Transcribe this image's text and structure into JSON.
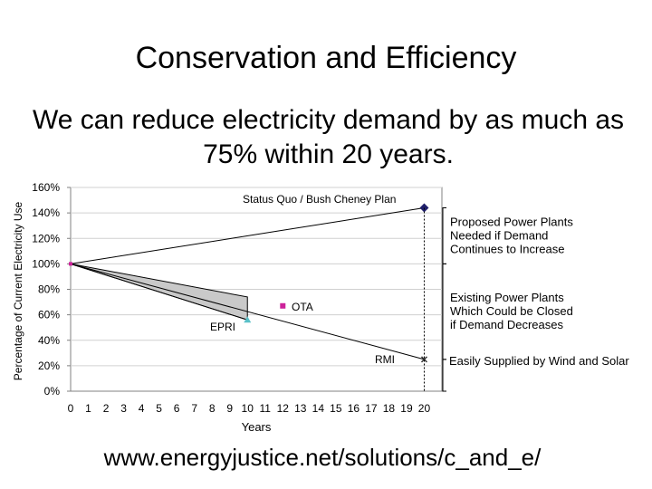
{
  "slide": {
    "title": "Conservation and Efficiency",
    "subtitle": "We can reduce electricity demand by as much as 75% within 20 years.",
    "url": "www.energyjustice.net/solutions/c_and_e/"
  },
  "chart_data": {
    "type": "line",
    "title": "",
    "xlabel": "Years",
    "ylabel": "Percentage of Current Electricity Use",
    "xlim": [
      0,
      21
    ],
    "ylim": [
      0,
      160
    ],
    "x_ticks": [
      "0",
      "1",
      "2",
      "3",
      "4",
      "5",
      "6",
      "7",
      "8",
      "9",
      "10",
      "11",
      "12",
      "13",
      "14",
      "15",
      "16",
      "17",
      "18",
      "19",
      "20"
    ],
    "y_ticks": [
      "0%",
      "20%",
      "40%",
      "60%",
      "80%",
      "100%",
      "120%",
      "140%",
      "160%"
    ],
    "y_tick_values": [
      0,
      20,
      40,
      60,
      80,
      100,
      120,
      140,
      160
    ],
    "series": [
      {
        "name": "Status Quo / Bush Cheney Plan",
        "x": [
          0,
          20
        ],
        "y": [
          100,
          144
        ],
        "color": "#1f1f6b",
        "marker": "diamond"
      },
      {
        "name": "OTA",
        "x": [
          0,
          12
        ],
        "y": [
          100,
          67
        ],
        "color": "#cc2299",
        "marker": "square"
      },
      {
        "name": "EPRI",
        "x": [
          0,
          10
        ],
        "y": [
          100,
          56
        ],
        "color": "#59c0c8",
        "marker": "triangle"
      },
      {
        "name": "RMI",
        "x": [
          0,
          20
        ],
        "y": [
          100,
          25
        ],
        "color": "#333333",
        "marker": "x"
      }
    ],
    "shaded_band": {
      "x": [
        0,
        10
      ],
      "upper": [
        100,
        74
      ],
      "lower": [
        100,
        56
      ],
      "fill": "#c9c9c9"
    },
    "brackets": [
      {
        "label_lines": [
          "Proposed Power Plants",
          "Needed if Demand",
          "Continues to Increase"
        ],
        "y_from": 100,
        "y_to": 144
      },
      {
        "label_lines": [
          "Existing Power Plants",
          "Which Could be Closed",
          "if Demand Decreases"
        ],
        "y_from": 25,
        "y_to": 100
      },
      {
        "label_lines": [
          "Easily Supplied by Wind and Solar"
        ],
        "y_from": 0,
        "y_to": 25
      }
    ],
    "markers": {
      "status_quo_diamond_color": "#1f1f6b",
      "start_point_color": "#cc2299"
    }
  }
}
